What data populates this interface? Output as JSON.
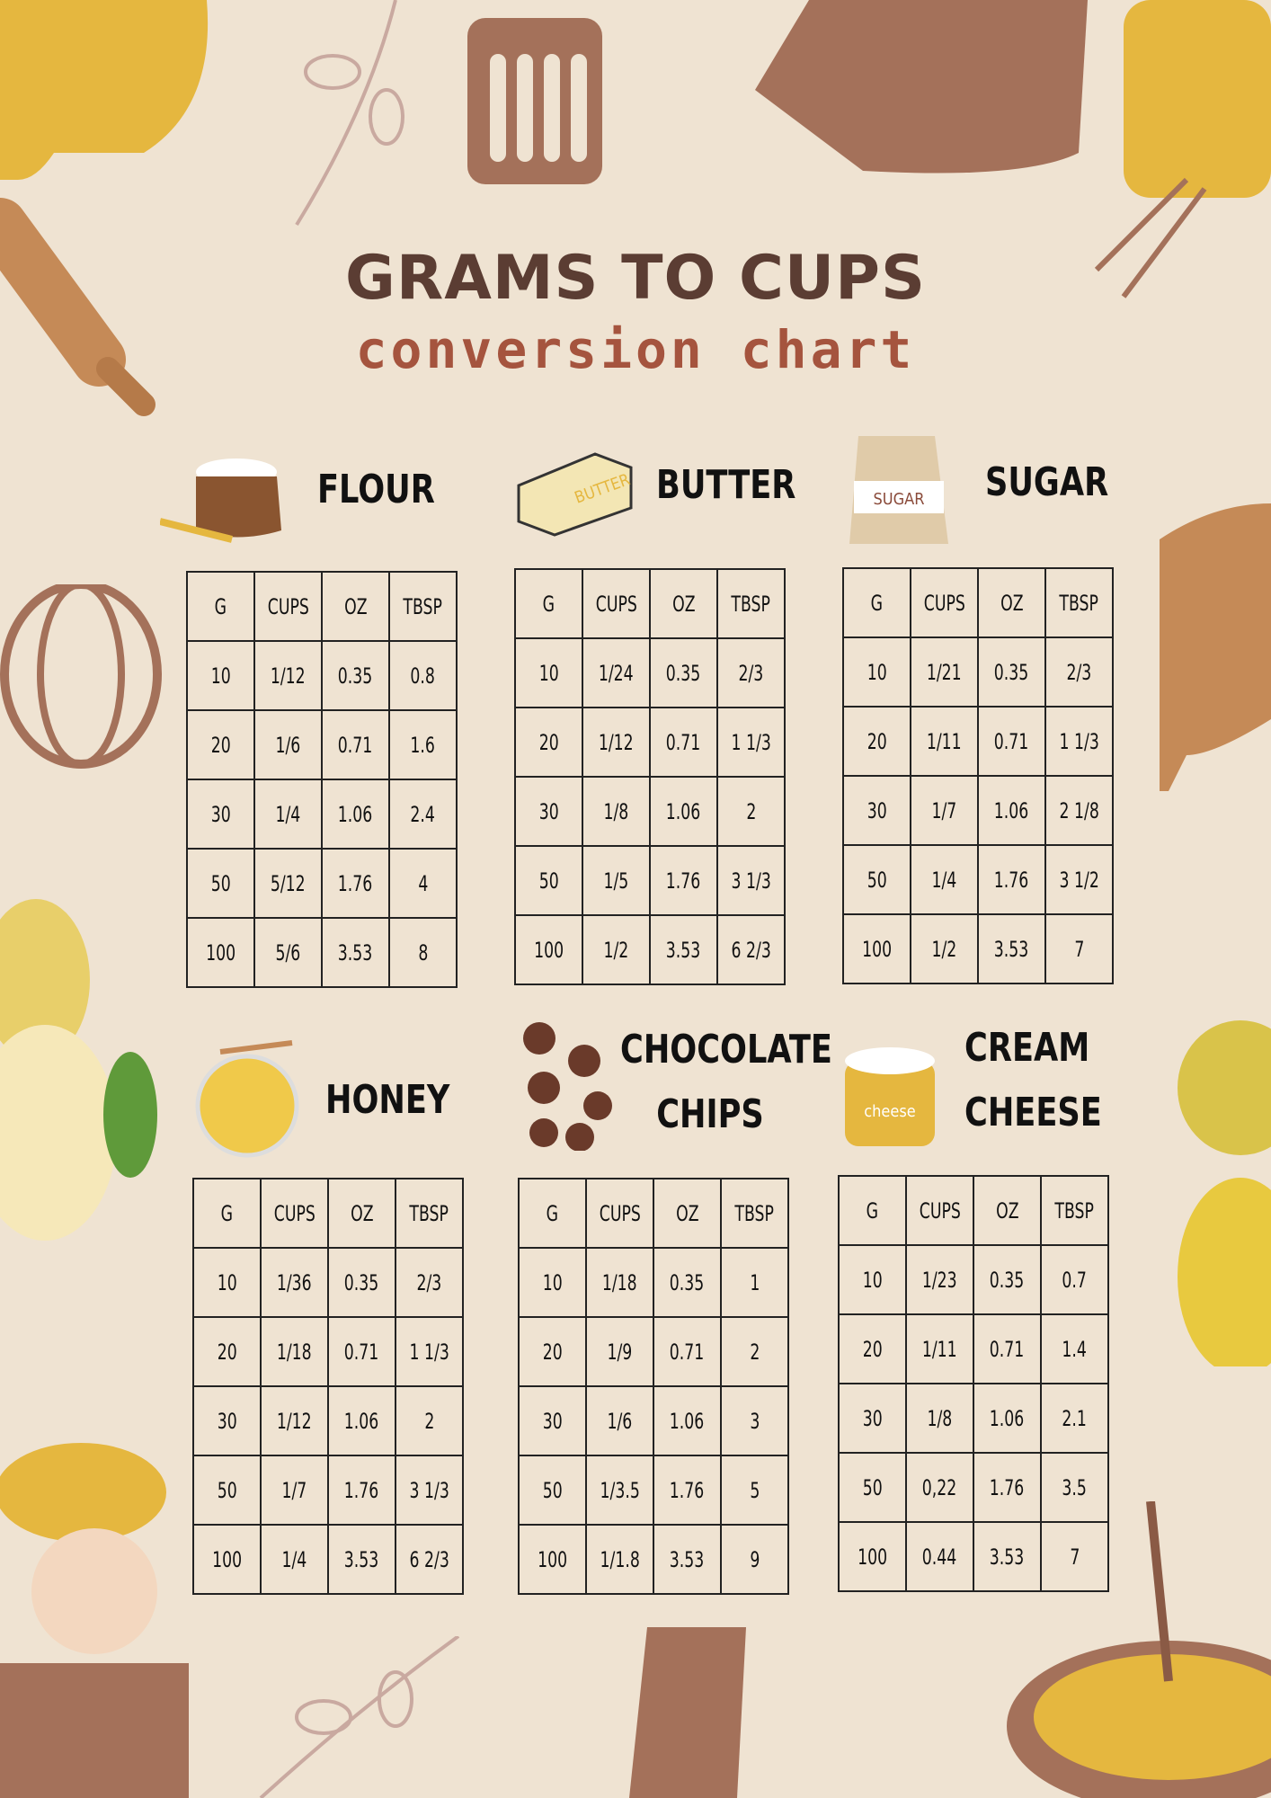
{
  "header": {
    "title": "GRAMS TO CUPS",
    "subtitle": "conversion chart"
  },
  "columns": [
    "G",
    "CUPS",
    "OZ",
    "TBSP"
  ],
  "icon_texts": {
    "butter": "BUTTER",
    "sugar": "SUGAR",
    "cheese": "cheese"
  },
  "colors": {
    "background": "#efe3d2",
    "title": "#5b3d33",
    "subtitle": "#a5543e",
    "mustard": "#e5b73f",
    "brown": "#a4715a",
    "leaf": "#c9a9a0"
  },
  "sections": [
    {
      "name": "FLOUR",
      "icon": "flour-sack-icon",
      "rows": [
        [
          "10",
          "1/12",
          "0.35",
          "0.8"
        ],
        [
          "20",
          "1/6",
          "0.71",
          "1.6"
        ],
        [
          "30",
          "1/4",
          "1.06",
          "2.4"
        ],
        [
          "50",
          "5/12",
          "1.76",
          "4"
        ],
        [
          "100",
          "5/6",
          "3.53",
          "8"
        ]
      ]
    },
    {
      "name": "BUTTER",
      "icon": "butter-icon",
      "rows": [
        [
          "10",
          "1/24",
          "0.35",
          "2/3"
        ],
        [
          "20",
          "1/12",
          "0.71",
          "1 1/3"
        ],
        [
          "30",
          "1/8",
          "1.06",
          "2"
        ],
        [
          "50",
          "1/5",
          "1.76",
          "3 1/3"
        ],
        [
          "100",
          "1/2",
          "3.53",
          "6 2/3"
        ]
      ]
    },
    {
      "name": "SUGAR",
      "icon": "sugar-bag-icon",
      "rows": [
        [
          "10",
          "1/21",
          "0.35",
          "2/3"
        ],
        [
          "20",
          "1/11",
          "0.71",
          "1 1/3"
        ],
        [
          "30",
          "1/7",
          "1.06",
          "2 1/8"
        ],
        [
          "50",
          "1/4",
          "1.76",
          "3 1/2"
        ],
        [
          "100",
          "1/2",
          "3.53",
          "7"
        ]
      ]
    },
    {
      "name": "HONEY",
      "icon": "honey-jar-icon",
      "rows": [
        [
          "10",
          "1/36",
          "0.35",
          "2/3"
        ],
        [
          "20",
          "1/18",
          "0.71",
          "1 1/3"
        ],
        [
          "30",
          "1/12",
          "1.06",
          "2"
        ],
        [
          "50",
          "1/7",
          "1.76",
          "3 1/3"
        ],
        [
          "100",
          "1/4",
          "3.53",
          "6 2/3"
        ]
      ]
    },
    {
      "name_lines": [
        "CHOCOLATE",
        "CHIPS"
      ],
      "name": "CHOCOLATE CHIPS",
      "icon": "chocolate-chips-icon",
      "rows": [
        [
          "10",
          "1/18",
          "0.35",
          "1"
        ],
        [
          "20",
          "1/9",
          "0.71",
          "2"
        ],
        [
          "30",
          "1/6",
          "1.06",
          "3"
        ],
        [
          "50",
          "1/3.5",
          "1.76",
          "5"
        ],
        [
          "100",
          "1/1.8",
          "3.53",
          "9"
        ]
      ]
    },
    {
      "name_lines": [
        "CREAM",
        "CHEESE"
      ],
      "name": "CREAM CHEESE",
      "icon": "cream-cheese-icon",
      "rows": [
        [
          "10",
          "1/23",
          "0.35",
          "0.7"
        ],
        [
          "20",
          "1/11",
          "0.71",
          "1.4"
        ],
        [
          "30",
          "1/8",
          "1.06",
          "2.1"
        ],
        [
          "50",
          "0,22",
          "1.76",
          "3.5"
        ],
        [
          "100",
          "0.44",
          "3.53",
          "7"
        ]
      ]
    }
  ]
}
